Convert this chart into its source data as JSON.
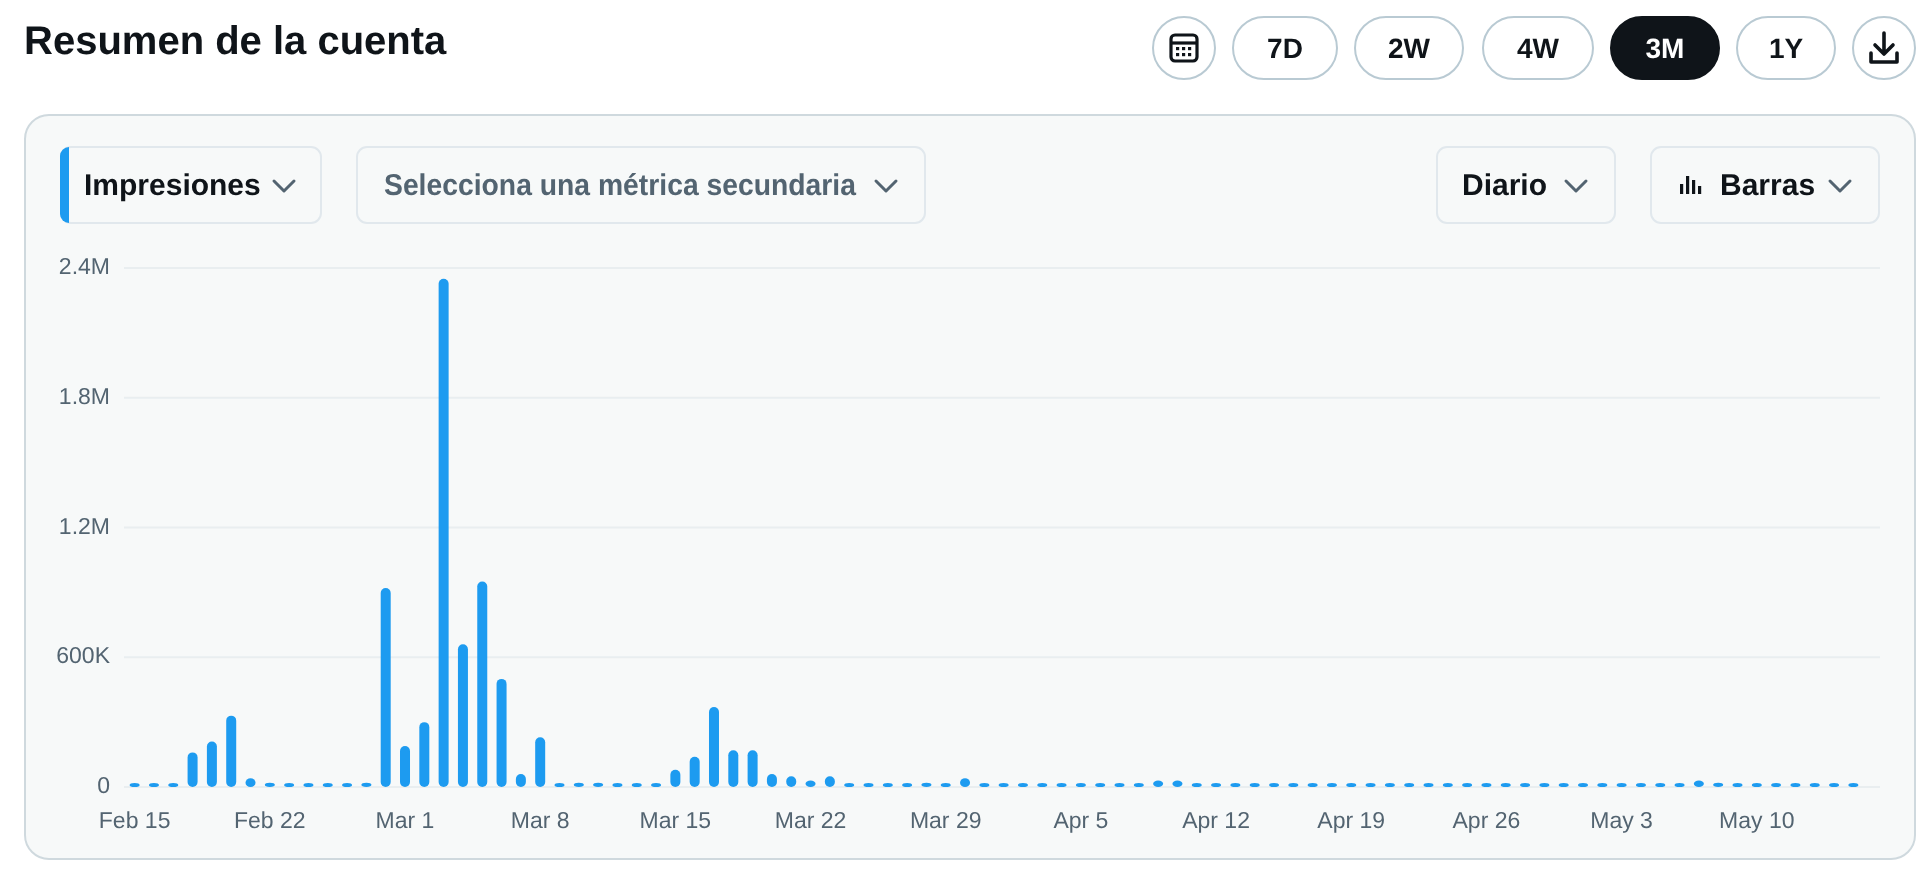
{
  "chart_data": {
    "type": "bar",
    "title": "Resumen de la cuenta",
    "annotations": [
      "7D",
      "2W",
      "4W",
      "3M",
      "1Y",
      "Selecciona una métrica secundaria",
      "Diario",
      "Barras"
    ],
    "categories": [
      "Feb 15",
      null,
      null,
      null,
      null,
      null,
      null,
      "Feb 22",
      null,
      null,
      null,
      null,
      null,
      null,
      "Mar 1",
      null,
      null,
      null,
      null,
      null,
      null,
      "Mar 8",
      null,
      null,
      null,
      null,
      null,
      null,
      "Mar 15",
      null,
      null,
      null,
      null,
      null,
      null,
      "Mar 22",
      null,
      null,
      null,
      null,
      null,
      null,
      "Mar 29",
      null,
      null,
      null,
      null,
      null,
      null,
      "Apr 5",
      null,
      null,
      null,
      null,
      null,
      null,
      "Apr 12",
      null,
      null,
      null,
      null,
      null,
      null,
      "Apr 19",
      null,
      null,
      null,
      null,
      null,
      null,
      "Apr 26",
      null,
      null,
      null,
      null,
      null,
      null,
      "May 3",
      null,
      null,
      null,
      null,
      null,
      null,
      "May 10",
      null,
      null,
      null,
      null,
      null
    ],
    "series": [
      {
        "name": "Impresiones",
        "color": "#1d9bf0",
        "values": [
          0,
          0,
          0,
          160000,
          210000,
          330000,
          40000,
          20000,
          0,
          0,
          10000,
          0,
          20000,
          920000,
          190000,
          300000,
          2350000,
          660000,
          950000,
          500000,
          60000,
          230000,
          10000,
          20000,
          20000,
          10000,
          10000,
          10000,
          80000,
          140000,
          370000,
          170000,
          170000,
          60000,
          50000,
          30000,
          50000,
          0,
          0,
          0,
          0,
          20000,
          0,
          40000,
          0,
          0,
          0,
          0,
          0,
          0,
          0,
          0,
          0,
          30000,
          30000,
          0,
          0,
          0,
          0,
          0,
          0,
          0,
          0,
          0,
          0,
          0,
          10000,
          10000,
          0,
          0,
          0,
          0,
          0,
          0,
          0,
          0,
          0,
          0,
          0,
          0,
          0,
          30000,
          20000,
          0,
          0,
          0,
          0,
          0,
          0,
          0
        ]
      }
    ],
    "ylim": [
      0,
      2400000
    ],
    "yticks": [
      0,
      {
        "value": 600000,
        "label": "600K"
      },
      {
        "value": 1200000,
        "label": "1.2M"
      },
      {
        "value": 1800000,
        "label": "1.8M"
      },
      {
        "value": 2400000,
        "label": "2.4M"
      }
    ],
    "grid": "y",
    "legend": "top left"
  }
}
